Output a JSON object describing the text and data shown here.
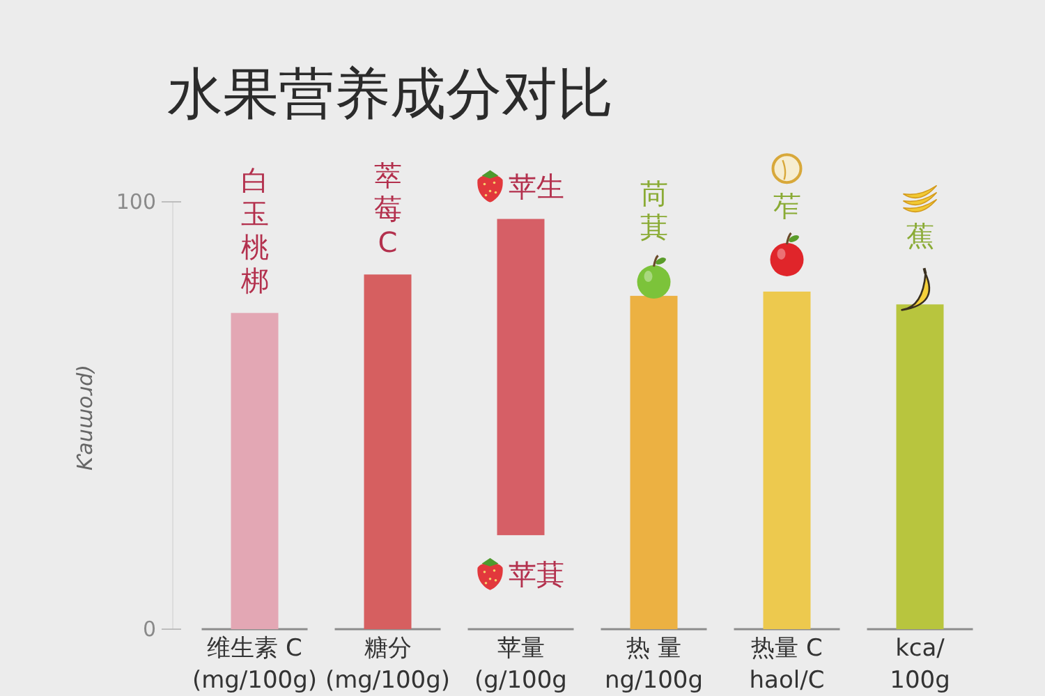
{
  "chart_data": {
    "type": "bar",
    "title": "水果营养成分对比",
    "ylabel": "Ƙauɯoɹd)",
    "categories": [
      "维生素 C\n(mg/100g)",
      "糖分\n(mg/100g)",
      "苹量\n(g/100g",
      "热 量\nng/100g",
      "热量 C\nhaol/C",
      "kca/\n100g"
    ],
    "values": [
      74,
      83,
      74,
      78,
      79,
      76
    ],
    "base": [
      0,
      0,
      22,
      0,
      0,
      0
    ],
    "colors": [
      "#e3a7b4",
      "#d65f60",
      "#d65f66",
      "#ecb142",
      "#edc94e",
      "#b8c53e"
    ],
    "ylim": [
      0,
      100
    ],
    "yticks": [
      0,
      100
    ],
    "annotations": [
      {
        "text": "白玉桃梆",
        "x": "维生素 C\n(mg/100g)",
        "y": 74
      },
      {
        "text": "萃莓C",
        "x": "糖分\n(mg/100g)",
        "y": 83
      },
      {
        "text": "苹生",
        "x": "苹量\n(g/100g",
        "y": 96
      },
      {
        "text": "苹萁",
        "x": "苹量\n(g/100g",
        "y": 22
      },
      {
        "text": "苘萁",
        "x": "热 量\nng/100g",
        "y": 78
      },
      {
        "text": "苲",
        "x": "热量 C\nhaol/C",
        "y": 79
      },
      {
        "text": "蕉",
        "x": "kca/\n100g",
        "y": 76
      }
    ]
  }
}
